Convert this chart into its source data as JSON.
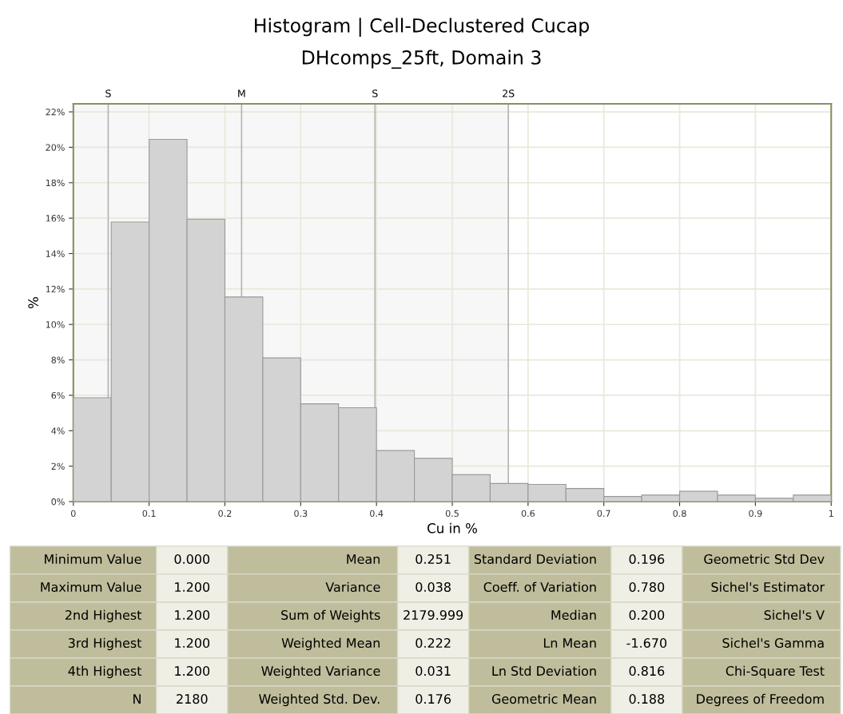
{
  "chart_data": {
    "type": "histogram",
    "title": "Histogram | Cell-Declustered Cucap",
    "subtitle": "DHcomps_25ft, Domain 3",
    "xlabel": "Cu in %",
    "ylabel": "%",
    "bins": [
      0,
      0.05,
      0.1,
      0.15,
      0.2,
      0.25,
      0.3,
      0.35,
      0.4,
      0.45,
      0.5,
      0.55,
      0.6,
      0.65,
      0.7,
      0.75,
      0.8,
      0.85,
      0.9,
      0.95,
      1.0
    ],
    "values": [
      5.86,
      15.78,
      20.45,
      15.94,
      11.55,
      8.11,
      5.52,
      5.3,
      2.88,
      2.44,
      1.52,
      1.02,
      0.97,
      0.74,
      0.29,
      0.37,
      0.58,
      0.37,
      0.19,
      0.37
    ],
    "color": "#d3d3d3",
    "xlim": [
      0,
      1
    ],
    "xticks": [
      0,
      0.1,
      0.2,
      0.3,
      0.4,
      0.5,
      0.6,
      0.7,
      0.8,
      0.9,
      1
    ],
    "ylim": [
      0,
      22.45
    ],
    "yticks": [
      {
        "value": 0,
        "label": "0%"
      },
      {
        "value": 2,
        "label": "2%"
      },
      {
        "value": 4,
        "label": "4%"
      },
      {
        "value": 6,
        "label": "6%"
      },
      {
        "value": 8,
        "label": "8%"
      },
      {
        "value": 10,
        "label": "10%"
      },
      {
        "value": 12,
        "label": "12%"
      },
      {
        "value": 14,
        "label": "14%"
      },
      {
        "value": 16,
        "label": "16%"
      },
      {
        "value": 18,
        "label": "18%"
      },
      {
        "value": 20,
        "label": "20%"
      },
      {
        "value": 22,
        "label": "22%"
      }
    ],
    "grid": true,
    "bands": [
      {
        "axis": "x",
        "from": 0,
        "to": 0.574,
        "color": "#f7f7f7"
      }
    ],
    "ref_lines": [
      {
        "axis": "x",
        "value": 0.046,
        "label": "S",
        "color": "#b4b4b4"
      },
      {
        "axis": "x",
        "value": 0.222,
        "label": "M",
        "color": "#b4b4b4"
      },
      {
        "axis": "x",
        "value": 0.398,
        "label": "S",
        "color": "#b4b4b4"
      },
      {
        "axis": "x",
        "value": 0.574,
        "label": "2S",
        "color": "#b4b4b4"
      }
    ],
    "annotations": [
      "Minimum Value",
      "0.000",
      "Mean",
      "0.251",
      "Standard Deviation",
      "0.196",
      "Geometric Std Dev",
      "Maximum Value",
      "1.200",
      "Variance",
      "0.038",
      "Coeff. of Variation",
      "0.780",
      "Sichel's Estimator",
      "2nd Highest",
      "1.200",
      "Sum of Weights",
      "2179.999",
      "Median",
      "0.200",
      "Sichel's V",
      "3rd Highest",
      "1.200",
      "Weighted Mean",
      "0.222",
      "Ln Mean",
      "-1.670",
      "Sichel's Gamma",
      "4th Highest",
      "1.200",
      "Weighted Variance",
      "0.031",
      "Ln Std Deviation",
      "0.816",
      "Chi-Square Test",
      "N",
      "2180",
      "Weighted Std. Dev.",
      "0.176",
      "Geometric Mean",
      "0.188",
      "Degrees of Freedom"
    ]
  }
}
